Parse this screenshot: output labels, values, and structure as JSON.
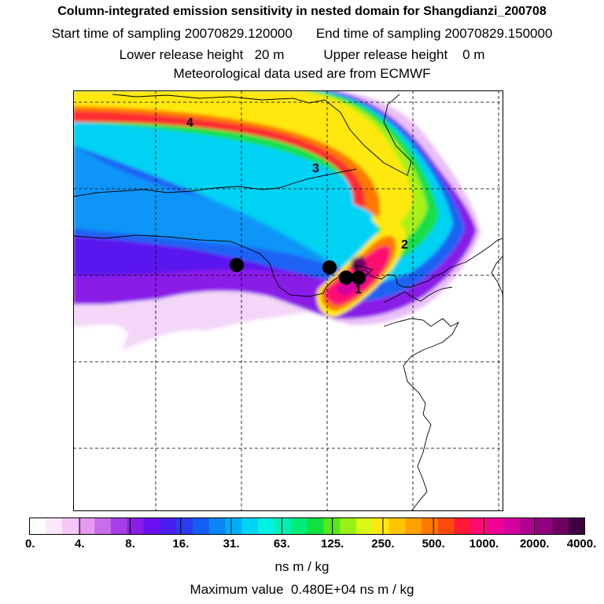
{
  "header": {
    "title": "Column-integrated emission sensitivity in nested domain for Shangdianzi_200708",
    "start_label": "Start time of sampling",
    "start_value": "20070829.120000",
    "end_label": "End time of sampling",
    "end_value": "20070829.150000",
    "lower_label": "Lower release height",
    "lower_value": "20 m",
    "upper_label": "Upper release height",
    "upper_value": "0 m",
    "met_line": "Meteorological data used are from ECMWF"
  },
  "map": {
    "contour_labels": [
      "1",
      "2",
      "3",
      "4"
    ],
    "marker_count": 4
  },
  "legend": {
    "tick_labels": [
      "0.",
      "4.",
      "8.",
      "16.",
      "31.",
      "63.",
      "125.",
      "250.",
      "500.",
      "1000.",
      "2000.",
      "4000."
    ],
    "colors": [
      "#ffffff",
      "#fce8fc",
      "#f5c6f7",
      "#e59af0",
      "#c86ee8",
      "#a63fe6",
      "#8a1de8",
      "#6a10f0",
      "#4a1ef0",
      "#2a3cf2",
      "#145ef6",
      "#0a86f7",
      "#00aef8",
      "#00d4f4",
      "#00f2e2",
      "#00f0b4",
      "#00ec7a",
      "#10e040",
      "#55e81a",
      "#98f014",
      "#d8f818",
      "#ffe80a",
      "#ffc400",
      "#ffa000",
      "#ff7800",
      "#ff4a10",
      "#ff1a3a",
      "#ff0a70",
      "#f00096",
      "#d400a0",
      "#b00090",
      "#900080",
      "#6e0060",
      "#400040"
    ],
    "units": "ns m / kg",
    "max_label": "Maximum value",
    "max_value": "0.480E+04 ns m / kg"
  }
}
